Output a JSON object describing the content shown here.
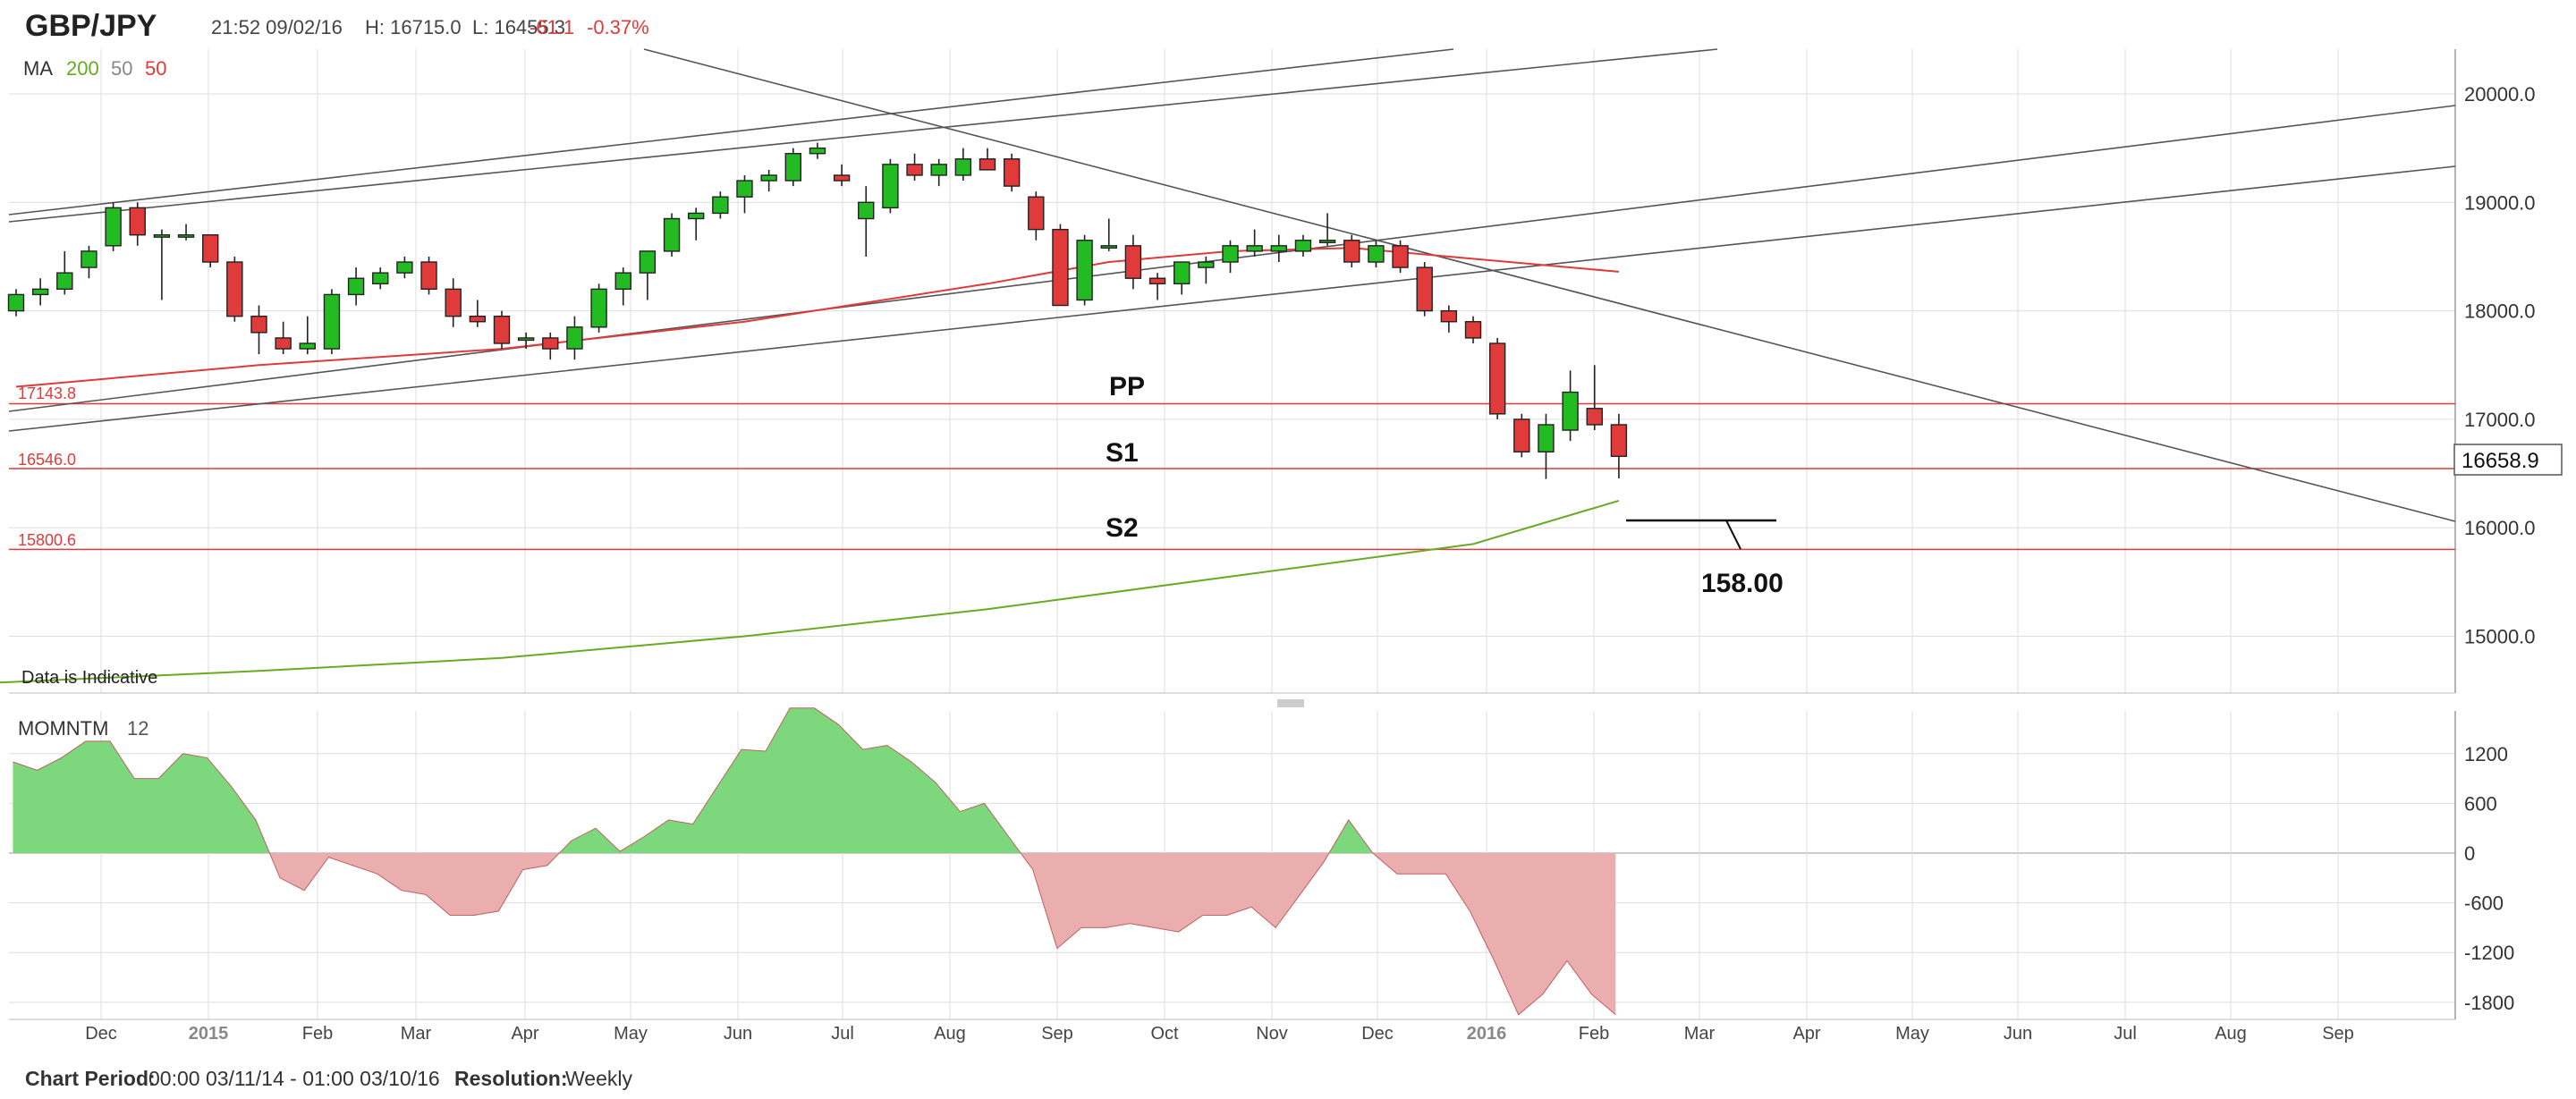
{
  "header": {
    "symbol": "GBP/JPY",
    "datetime": "21:52 09/02/16",
    "high": "H: 16715.0",
    "low": "L: 16455.3",
    "change": "-61.1",
    "change_pct": "-0.37%"
  },
  "ma_legend": {
    "label": "MA",
    "p200": "200",
    "p50a": "50",
    "p50b": "50"
  },
  "colors": {
    "up": "#22bb22",
    "down": "#e03a3a",
    "ma_red": "#e03a3a",
    "ma_green": "#6aaa22",
    "grid": "#dddddd",
    "trend": "#555555",
    "mom_pos_fill": "#7dd87d",
    "mom_neg_fill": "#eaaeae"
  },
  "annotations": {
    "pp": "PP",
    "s1": "S1",
    "s2": "S2",
    "pp_value": "17143.8",
    "s1_value": "16546.0",
    "s2_value": "15800.6",
    "target": "158.00",
    "indicative": "Data is Indicative",
    "last_price": "16658.9"
  },
  "momentum": {
    "label": "MOMNTM",
    "period": "12"
  },
  "footer": {
    "period_label": "Chart Period:",
    "period_value": "00:00 03/11/14 - 01:00 03/10/16",
    "res_label": "Resolution:",
    "res_value": "Weekly"
  },
  "chart_data": [
    {
      "type": "candlestick",
      "title": "GBP/JPY",
      "x_labels": [
        "Dec",
        "2015",
        "Feb",
        "Mar",
        "Apr",
        "May",
        "Jun",
        "Jul",
        "Aug",
        "Sep",
        "Oct",
        "Nov",
        "Dec",
        "2016",
        "Feb",
        "Mar",
        "Apr",
        "May",
        "Jun",
        "Jul",
        "Aug",
        "Sep"
      ],
      "y_ticks": [
        "15000.0",
        "16000.0",
        "17000.0",
        "18000.0",
        "19000.0",
        "20000.0"
      ],
      "ylim": [
        14500,
        20600
      ],
      "ohlc": [
        [
          18000,
          18200,
          17950,
          18150
        ],
        [
          18150,
          18300,
          18050,
          18200
        ],
        [
          18200,
          18550,
          18150,
          18350
        ],
        [
          18400,
          18600,
          18300,
          18550
        ],
        [
          18600,
          19000,
          18550,
          18950
        ],
        [
          18950,
          19000,
          18600,
          18700
        ],
        [
          18700,
          18750,
          18100,
          18700
        ],
        [
          18700,
          18800,
          18650,
          18700
        ],
        [
          18700,
          18700,
          18400,
          18450
        ],
        [
          18450,
          18500,
          17900,
          17950
        ],
        [
          17950,
          18050,
          17600,
          17800
        ],
        [
          17750,
          17900,
          17600,
          17650
        ],
        [
          17650,
          17950,
          17600,
          17700
        ],
        [
          17650,
          18200,
          17600,
          18150
        ],
        [
          18150,
          18400,
          18050,
          18300
        ],
        [
          18250,
          18400,
          18200,
          18350
        ],
        [
          18350,
          18500,
          18300,
          18450
        ],
        [
          18450,
          18500,
          18150,
          18200
        ],
        [
          18200,
          18300,
          17850,
          17950
        ],
        [
          17950,
          18100,
          17850,
          17900
        ],
        [
          17950,
          18000,
          17650,
          17700
        ],
        [
          17750,
          17800,
          17650,
          17750
        ],
        [
          17750,
          17800,
          17550,
          17650
        ],
        [
          17650,
          17950,
          17550,
          17850
        ],
        [
          17850,
          18250,
          17800,
          18200
        ],
        [
          18200,
          18400,
          18050,
          18350
        ],
        [
          18350,
          18550,
          18100,
          18550
        ],
        [
          18550,
          18900,
          18500,
          18850
        ],
        [
          18850,
          18950,
          18650,
          18900
        ],
        [
          18900,
          19100,
          18850,
          19050
        ],
        [
          19050,
          19250,
          18900,
          19200
        ],
        [
          19200,
          19300,
          19100,
          19250
        ],
        [
          19200,
          19500,
          19150,
          19450
        ],
        [
          19450,
          19550,
          19400,
          19500
        ],
        [
          19250,
          19350,
          19150,
          19200
        ],
        [
          18850,
          19150,
          18500,
          19000
        ],
        [
          18950,
          19400,
          18900,
          19350
        ],
        [
          19350,
          19450,
          19200,
          19250
        ],
        [
          19250,
          19400,
          19150,
          19350
        ],
        [
          19250,
          19500,
          19200,
          19400
        ],
        [
          19400,
          19500,
          19300,
          19300
        ],
        [
          19400,
          19450,
          19100,
          19150
        ],
        [
          19050,
          19100,
          18650,
          18750
        ],
        [
          18750,
          18800,
          18050,
          18050
        ],
        [
          18100,
          18700,
          18050,
          18650
        ],
        [
          18600,
          18850,
          18550,
          18600
        ],
        [
          18600,
          18700,
          18200,
          18300
        ],
        [
          18300,
          18350,
          18100,
          18250
        ],
        [
          18250,
          18450,
          18150,
          18450
        ],
        [
          18400,
          18500,
          18250,
          18450
        ],
        [
          18450,
          18650,
          18350,
          18600
        ],
        [
          18550,
          18750,
          18500,
          18600
        ],
        [
          18550,
          18700,
          18450,
          18600
        ],
        [
          18550,
          18700,
          18500,
          18650
        ],
        [
          18650,
          18900,
          18600,
          18650
        ],
        [
          18650,
          18700,
          18400,
          18450
        ],
        [
          18450,
          18650,
          18400,
          18600
        ],
        [
          18600,
          18650,
          18350,
          18400
        ],
        [
          18400,
          18450,
          17950,
          18000
        ],
        [
          18000,
          18050,
          17800,
          17900
        ],
        [
          17900,
          17950,
          17700,
          17750
        ],
        [
          17700,
          17750,
          17000,
          17050
        ],
        [
          17000,
          17050,
          16650,
          16700
        ],
        [
          16700,
          17050,
          16450,
          16950
        ],
        [
          16900,
          17450,
          16800,
          17250
        ],
        [
          17100,
          17500,
          16900,
          16950
        ],
        [
          16950,
          17050,
          16455,
          16659
        ]
      ],
      "ma50": [
        [
          0,
          17300
        ],
        [
          10,
          17500
        ],
        [
          20,
          17650
        ],
        [
          30,
          17900
        ],
        [
          40,
          18250
        ],
        [
          45,
          18450
        ],
        [
          50,
          18550
        ],
        [
          55,
          18580
        ],
        [
          60,
          18480
        ],
        [
          66,
          18360
        ]
      ],
      "ma200": [
        [
          -3,
          14550
        ],
        [
          10,
          14680
        ],
        [
          20,
          14800
        ],
        [
          30,
          15000
        ],
        [
          40,
          15250
        ],
        [
          50,
          15550
        ],
        [
          60,
          15850
        ],
        [
          66,
          16250
        ]
      ],
      "levels": [
        17143.8,
        16546.0,
        15800.6
      ]
    },
    {
      "type": "area",
      "title": "MOMNTM 12",
      "y_ticks": [
        "-1800",
        "-1200",
        "-600",
        "0",
        "600",
        "1200"
      ],
      "ylim": [
        -1950,
        1750
      ],
      "values": [
        1100,
        1000,
        1150,
        1350,
        1350,
        900,
        900,
        1200,
        1150,
        800,
        400,
        -300,
        -450,
        -50,
        -150,
        -250,
        -450,
        -500,
        -750,
        -750,
        -700,
        -200,
        -150,
        150,
        300,
        20,
        200,
        400,
        350,
        800,
        1250,
        1230,
        1750,
        1750,
        1550,
        1250,
        1300,
        1100,
        850,
        500,
        600,
        200,
        -200,
        -1150,
        -900,
        -900,
        -850,
        -900,
        -950,
        -750,
        -750,
        -650,
        -900,
        -500,
        -100,
        400,
        0,
        -250,
        -250,
        -250,
        -700,
        -1300,
        -1950,
        -1700,
        -1300,
        -1700,
        -1950
      ]
    }
  ]
}
